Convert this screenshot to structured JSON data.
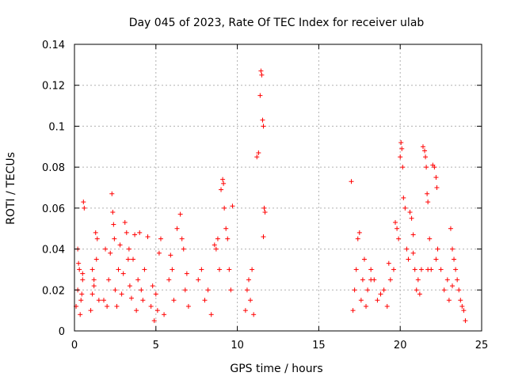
{
  "chart_data": {
    "type": "scatter",
    "title": "Day 045 of 2023, Rate Of TEC Index for receiver ulab",
    "xlabel": "GPS time / hours",
    "ylabel": "ROTI / TECUs",
    "xlim": [
      0,
      25
    ],
    "ylim": [
      0,
      0.14
    ],
    "xticks": [
      "0",
      "5",
      "10",
      "15",
      "20",
      "25"
    ],
    "yticks": [
      "0",
      "0.02",
      "0.04",
      "0.06",
      "0.08",
      "0.1",
      "0.12",
      "0.14"
    ],
    "grid": true,
    "marker": "+",
    "color": "#ff0000",
    "series": [
      {
        "x": [
          0.1,
          0.2,
          0.3,
          0.4,
          0.5,
          0.2,
          0.35,
          0.45,
          0.55,
          0.6,
          0.25,
          0.5,
          1.0,
          1.1,
          1.2,
          1.3,
          1.4,
          1.5,
          1.2,
          1.35,
          1.1,
          1.8,
          1.9,
          2.0,
          2.1,
          2.2,
          2.3,
          2.35,
          2.4,
          2.45,
          2.5,
          2.6,
          2.7,
          2.8,
          2.9,
          3.0,
          3.1,
          3.2,
          3.3,
          3.35,
          3.4,
          3.5,
          3.6,
          3.7,
          3.8,
          3.9,
          4.0,
          4.1,
          4.2,
          4.3,
          4.5,
          4.7,
          4.8,
          4.9,
          5.0,
          5.1,
          5.2,
          5.3,
          5.5,
          5.8,
          5.9,
          6.0,
          6.1,
          6.3,
          6.5,
          6.6,
          6.7,
          6.8,
          6.9,
          7.0,
          7.6,
          7.8,
          8.0,
          8.2,
          8.4,
          8.6,
          8.7,
          8.8,
          8.9,
          9.0,
          9.1,
          9.15,
          9.2,
          9.3,
          9.4,
          9.5,
          9.6,
          9.7,
          10.5,
          10.6,
          10.7,
          10.8,
          10.9,
          11.0,
          11.2,
          11.3,
          11.4,
          11.45,
          11.5,
          11.55,
          11.6,
          11.65,
          11.7,
          11.6,
          17.0,
          17.1,
          17.2,
          17.3,
          17.4,
          17.5,
          17.6,
          17.7,
          17.8,
          17.9,
          18.0,
          18.2,
          18.4,
          18.6,
          18.8,
          19.0,
          19.2,
          19.4,
          19.6,
          19.7,
          19.8,
          19.9,
          20.0,
          20.05,
          20.1,
          20.15,
          20.2,
          20.3,
          20.4,
          20.5,
          20.6,
          20.7,
          20.8,
          20.9,
          21.0,
          21.1,
          21.2,
          21.3,
          21.4,
          21.5,
          21.55,
          21.6,
          21.65,
          21.7,
          21.8,
          21.9,
          22.0,
          22.1,
          22.2,
          22.25,
          22.3,
          22.5,
          22.7,
          22.9,
          23.0,
          23.1,
          23.2,
          23.3,
          23.4,
          23.5,
          23.6,
          23.7,
          23.8,
          23.9,
          24.0,
          18.2,
          19.3,
          20.8,
          21.7,
          22.2,
          23.2
        ],
        "y": [
          0.012,
          0.02,
          0.03,
          0.015,
          0.025,
          0.04,
          0.008,
          0.018,
          0.063,
          0.06,
          0.033,
          0.028,
          0.01,
          0.018,
          0.025,
          0.048,
          0.045,
          0.015,
          0.022,
          0.035,
          0.03,
          0.015,
          0.04,
          0.012,
          0.025,
          0.038,
          0.067,
          0.058,
          0.052,
          0.045,
          0.02,
          0.012,
          0.03,
          0.042,
          0.018,
          0.028,
          0.053,
          0.048,
          0.035,
          0.04,
          0.022,
          0.016,
          0.035,
          0.047,
          0.01,
          0.025,
          0.048,
          0.02,
          0.015,
          0.03,
          0.046,
          0.012,
          0.022,
          0.005,
          0.018,
          0.01,
          0.038,
          0.045,
          0.008,
          0.025,
          0.037,
          0.03,
          0.015,
          0.05,
          0.057,
          0.045,
          0.04,
          0.02,
          0.028,
          0.012,
          0.025,
          0.03,
          0.015,
          0.02,
          0.008,
          0.042,
          0.04,
          0.045,
          0.03,
          0.069,
          0.074,
          0.072,
          0.06,
          0.05,
          0.045,
          0.03,
          0.02,
          0.061,
          0.01,
          0.02,
          0.025,
          0.015,
          0.03,
          0.008,
          0.085,
          0.087,
          0.115,
          0.127,
          0.125,
          0.103,
          0.1,
          0.06,
          0.058,
          0.046,
          0.073,
          0.01,
          0.02,
          0.03,
          0.045,
          0.048,
          0.015,
          0.025,
          0.035,
          0.012,
          0.02,
          0.03,
          0.025,
          0.015,
          0.018,
          0.02,
          0.012,
          0.025,
          0.03,
          0.053,
          0.05,
          0.045,
          0.085,
          0.092,
          0.089,
          0.08,
          0.065,
          0.06,
          0.04,
          0.035,
          0.058,
          0.055,
          0.047,
          0.03,
          0.02,
          0.025,
          0.018,
          0.03,
          0.09,
          0.088,
          0.085,
          0.08,
          0.067,
          0.063,
          0.045,
          0.03,
          0.081,
          0.08,
          0.075,
          0.07,
          0.04,
          0.03,
          0.02,
          0.025,
          0.015,
          0.05,
          0.04,
          0.035,
          0.03,
          0.025,
          0.02,
          0.015,
          0.012,
          0.01,
          0.005,
          0.025,
          0.033,
          0.038,
          0.03,
          0.035,
          0.022
        ]
      }
    ]
  }
}
